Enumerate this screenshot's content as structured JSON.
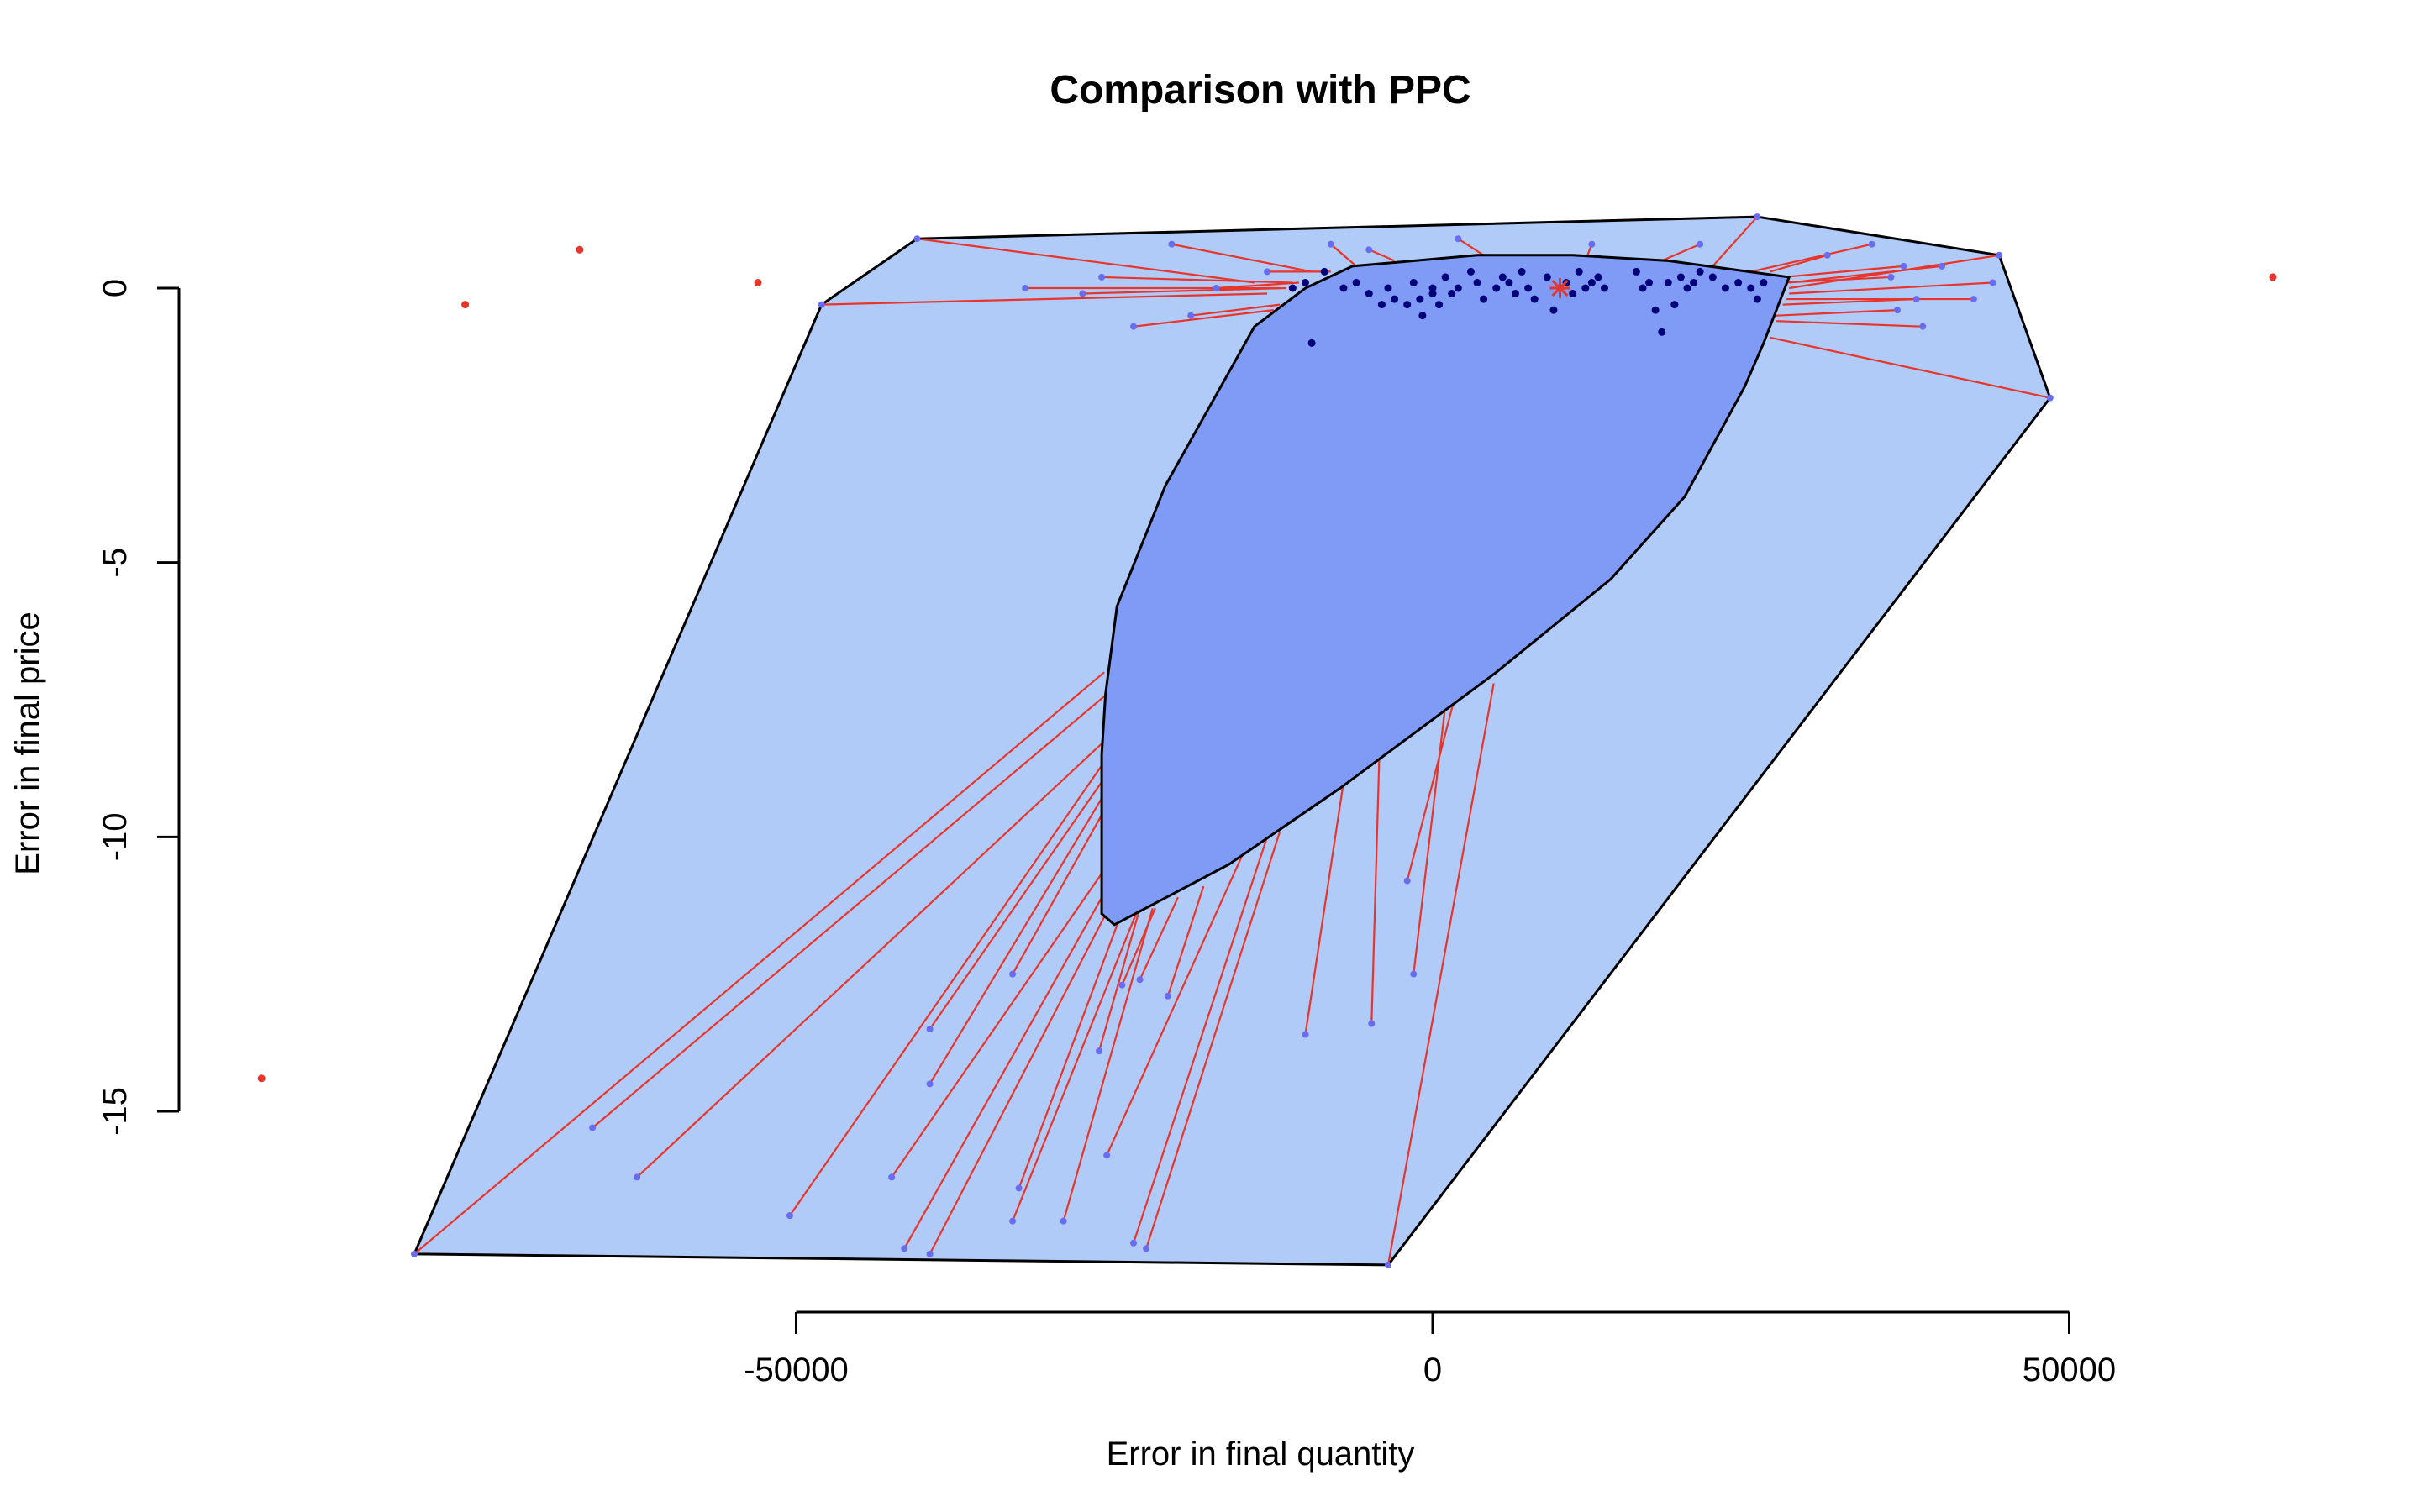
{
  "chart_data": {
    "type": "scatter",
    "title": "Comparison with PPC",
    "xlabel": "Error in final quantity",
    "ylabel": "Error in final price",
    "x_ticks": [
      -50000,
      0,
      50000
    ],
    "x_tick_labels": [
      "-50000",
      "0",
      "50000"
    ],
    "y_ticks": [
      0,
      -5,
      -10,
      -15
    ],
    "y_tick_labels": [
      "0",
      "-5",
      "-10",
      "-15"
    ],
    "grid": false,
    "legend": "none",
    "colors": {
      "outer_fill": "#b0cbf8",
      "inner_fill": "#7f9bf5",
      "connector": "#e8352c",
      "projected_point": "#6a6cf0",
      "observed_point": "#00007a",
      "outlier": "#e8352c",
      "reference_marker": "#e8352c"
    },
    "outer_region": [
      [
        -80000,
        -17.6
      ],
      [
        -48000,
        -0.3
      ],
      [
        -40500,
        0.9
      ],
      [
        25500,
        1.3
      ],
      [
        44500,
        0.6
      ],
      [
        48500,
        -2.0
      ],
      [
        -3500,
        -17.8
      ]
    ],
    "inner_region": [
      [
        -26000,
        -11.4
      ],
      [
        -26000,
        -8.5
      ],
      [
        -25700,
        -7.4
      ],
      [
        -24800,
        -5.8
      ],
      [
        -21000,
        -3.6
      ],
      [
        -14000,
        -0.7
      ],
      [
        -10000,
        0.0
      ],
      [
        -6300,
        0.4
      ],
      [
        3500,
        0.6
      ],
      [
        11000,
        0.6
      ],
      [
        18500,
        0.5
      ],
      [
        28000,
        0.2
      ],
      [
        26000,
        -1.0
      ],
      [
        24500,
        -1.8
      ],
      [
        19800,
        -3.8
      ],
      [
        14000,
        -5.3
      ],
      [
        5000,
        -7.0
      ],
      [
        -7200,
        -9.1
      ],
      [
        -16000,
        -10.5
      ],
      [
        -25000,
        -11.6
      ]
    ],
    "connectors": [
      [
        -80000,
        -17.6,
        -25800,
        -7.0
      ],
      [
        -66000,
        -15.3,
        -25600,
        -7.4
      ],
      [
        -62500,
        -16.2,
        -26000,
        -8.3
      ],
      [
        -50500,
        -16.9,
        -26000,
        -8.7
      ],
      [
        -39500,
        -13.5,
        -26000,
        -9.0
      ],
      [
        -39500,
        -14.5,
        -26000,
        -9.3
      ],
      [
        -33000,
        -12.5,
        -26000,
        -9.6
      ],
      [
        -42500,
        -16.2,
        -25800,
        -10.6
      ],
      [
        -41500,
        -17.5,
        -25500,
        -10.9
      ],
      [
        -39500,
        -17.6,
        -25000,
        -11.1
      ],
      [
        -32500,
        -16.4,
        -24300,
        -11.3
      ],
      [
        -33000,
        -17.0,
        -23300,
        -11.4
      ],
      [
        -29000,
        -17.0,
        -22000,
        -11.3
      ],
      [
        -26200,
        -13.9,
        -23000,
        -11.3
      ],
      [
        -24400,
        -12.7,
        -21800,
        -11.3
      ],
      [
        -23000,
        -12.6,
        -20000,
        -11.1
      ],
      [
        -20800,
        -12.9,
        -18000,
        -10.9
      ],
      [
        -25600,
        -15.8,
        -14500,
        -10.1
      ],
      [
        -23500,
        -17.4,
        -13000,
        -10.0
      ],
      [
        -22500,
        -17.5,
        -12000,
        -9.9
      ],
      [
        -10000,
        -13.6,
        -7000,
        -9.0
      ],
      [
        -4800,
        -13.4,
        -4200,
        -8.6
      ],
      [
        -1500,
        -12.5,
        1000,
        -7.6
      ],
      [
        -2000,
        -10.8,
        1800,
        -7.4
      ],
      [
        -3500,
        -17.8,
        4800,
        -7.2
      ],
      [
        -40500,
        0.9,
        -14000,
        0.1
      ],
      [
        -48000,
        -0.3,
        -13000,
        -0.1
      ],
      [
        -32000,
        0.0,
        -12000,
        0.0
      ],
      [
        -26000,
        0.2,
        -11000,
        0.1
      ],
      [
        -23500,
        -0.7,
        -12500,
        -0.4
      ],
      [
        -19000,
        -0.5,
        -12000,
        -0.3
      ],
      [
        -20500,
        0.8,
        -9500,
        0.3
      ],
      [
        -27500,
        -0.1,
        -11500,
        0.0
      ],
      [
        -17000,
        0.0,
        -10500,
        0.1
      ],
      [
        -8000,
        0.8,
        -6000,
        0.4
      ],
      [
        -5000,
        0.7,
        -3000,
        0.5
      ],
      [
        -13000,
        0.3,
        -8000,
        0.3
      ],
      [
        2000,
        0.9,
        4000,
        0.6
      ],
      [
        12500,
        0.8,
        12000,
        0.5
      ],
      [
        21000,
        0.8,
        18000,
        0.5
      ],
      [
        25500,
        1.3,
        22000,
        0.4
      ],
      [
        34500,
        0.8,
        25000,
        0.3
      ],
      [
        37000,
        0.4,
        27500,
        0.2
      ],
      [
        40000,
        0.4,
        28000,
        0.1
      ],
      [
        44500,
        0.6,
        28000,
        0.0
      ],
      [
        44000,
        0.1,
        28000,
        -0.1
      ],
      [
        42500,
        -0.2,
        27800,
        -0.2
      ],
      [
        38000,
        -0.2,
        27500,
        -0.3
      ],
      [
        36500,
        -0.4,
        27000,
        -0.5
      ],
      [
        38500,
        -0.7,
        27000,
        -0.6
      ],
      [
        48500,
        -2.0,
        26500,
        -0.9
      ],
      [
        31000,
        0.6,
        26500,
        0.3
      ],
      [
        36000,
        0.2,
        27500,
        0.1
      ]
    ],
    "projected_points": [
      [
        -80000,
        -17.6
      ],
      [
        -66000,
        -15.3
      ],
      [
        -62500,
        -16.2
      ],
      [
        -50500,
        -16.9
      ],
      [
        -39500,
        -13.5
      ],
      [
        -39500,
        -14.5
      ],
      [
        -33000,
        -12.5
      ],
      [
        -42500,
        -16.2
      ],
      [
        -41500,
        -17.5
      ],
      [
        -39500,
        -17.6
      ],
      [
        -32500,
        -16.4
      ],
      [
        -33000,
        -17.0
      ],
      [
        -29000,
        -17.0
      ],
      [
        -26200,
        -13.9
      ],
      [
        -24400,
        -12.7
      ],
      [
        -23000,
        -12.6
      ],
      [
        -20800,
        -12.9
      ],
      [
        -25600,
        -15.8
      ],
      [
        -23500,
        -17.4
      ],
      [
        -22500,
        -17.5
      ],
      [
        -10000,
        -13.6
      ],
      [
        -4800,
        -13.4
      ],
      [
        -1500,
        -12.5
      ],
      [
        -2000,
        -10.8
      ],
      [
        -3500,
        -17.8
      ],
      [
        -40500,
        0.9
      ],
      [
        -48000,
        -0.3
      ],
      [
        -32000,
        0.0
      ],
      [
        -26000,
        0.2
      ],
      [
        -23500,
        -0.7
      ],
      [
        -19000,
        -0.5
      ],
      [
        -20500,
        0.8
      ],
      [
        -27500,
        -0.1
      ],
      [
        -17000,
        0.0
      ],
      [
        -8000,
        0.8
      ],
      [
        -5000,
        0.7
      ],
      [
        -13000,
        0.3
      ],
      [
        2000,
        0.9
      ],
      [
        12500,
        0.8
      ],
      [
        21000,
        0.8
      ],
      [
        25500,
        1.3
      ],
      [
        34500,
        0.8
      ],
      [
        37000,
        0.4
      ],
      [
        40000,
        0.4
      ],
      [
        44500,
        0.6
      ],
      [
        44000,
        0.1
      ],
      [
        42500,
        -0.2
      ],
      [
        38000,
        -0.2
      ],
      [
        36500,
        -0.4
      ],
      [
        38500,
        -0.7
      ],
      [
        48500,
        -2.0
      ],
      [
        31000,
        0.6
      ],
      [
        36000,
        0.2
      ]
    ],
    "observed_points": [
      [
        -9500,
        -1.0
      ],
      [
        -7000,
        0.0
      ],
      [
        -6000,
        0.1
      ],
      [
        -5000,
        -0.1
      ],
      [
        -4000,
        -0.3
      ],
      [
        -3500,
        0.0
      ],
      [
        -3000,
        -0.2
      ],
      [
        -2000,
        -0.3
      ],
      [
        -1500,
        0.1
      ],
      [
        -1000,
        -0.2
      ],
      [
        -800,
        -0.5
      ],
      [
        0,
        0.0
      ],
      [
        0,
        -0.1
      ],
      [
        500,
        -0.3
      ],
      [
        1000,
        0.2
      ],
      [
        1500,
        -0.1
      ],
      [
        2000,
        0.0
      ],
      [
        3000,
        0.3
      ],
      [
        3500,
        0.1
      ],
      [
        4000,
        -0.2
      ],
      [
        5000,
        0.0
      ],
      [
        5500,
        0.2
      ],
      [
        6000,
        0.1
      ],
      [
        6500,
        -0.1
      ],
      [
        7000,
        0.3
      ],
      [
        7500,
        0.0
      ],
      [
        8000,
        -0.2
      ],
      [
        9000,
        0.2
      ],
      [
        9500,
        -0.4
      ],
      [
        10000,
        0.0
      ],
      [
        10500,
        0.1
      ],
      [
        11000,
        -0.1
      ],
      [
        11500,
        0.3
      ],
      [
        12000,
        0.0
      ],
      [
        12500,
        0.1
      ],
      [
        13000,
        0.2
      ],
      [
        13500,
        0.0
      ],
      [
        16000,
        0.3
      ],
      [
        16500,
        0.0
      ],
      [
        17000,
        0.1
      ],
      [
        17500,
        -0.4
      ],
      [
        18000,
        -0.8
      ],
      [
        18500,
        0.1
      ],
      [
        19000,
        -0.3
      ],
      [
        19500,
        0.2
      ],
      [
        20000,
        0.0
      ],
      [
        20500,
        0.1
      ],
      [
        21000,
        0.3
      ],
      [
        22000,
        0.2
      ],
      [
        23000,
        0.0
      ],
      [
        24000,
        0.1
      ],
      [
        25000,
        0.0
      ],
      [
        25500,
        -0.2
      ],
      [
        26000,
        0.1
      ],
      [
        -10000,
        0.1
      ],
      [
        -11000,
        0.0
      ],
      [
        -8500,
        0.3
      ]
    ],
    "outliers": [
      [
        -92000,
        -14.4
      ],
      [
        -76000,
        -0.3
      ],
      [
        -67000,
        0.7
      ],
      [
        -53000,
        0.1
      ],
      [
        66000,
        0.2
      ]
    ],
    "reference_point": [
      10000,
      0.0
    ]
  }
}
